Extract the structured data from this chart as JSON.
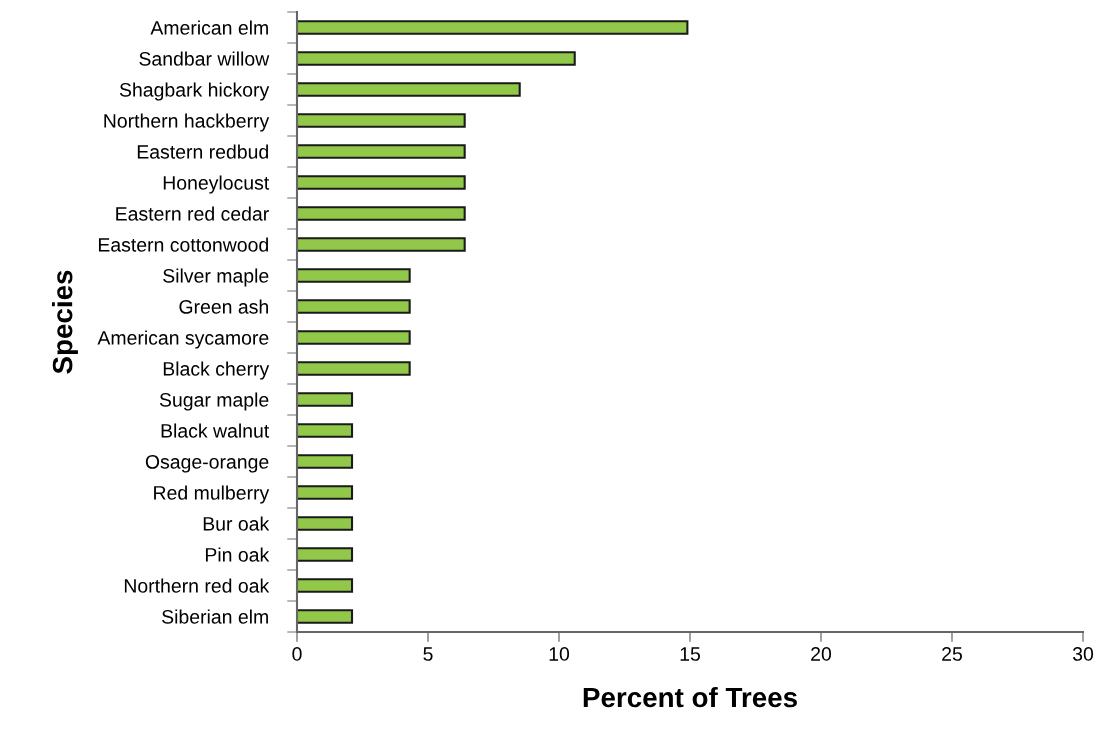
{
  "chart_data": {
    "type": "bar",
    "orientation": "horizontal",
    "xlabel": "Percent of Trees",
    "ylabel": "Species",
    "categories": [
      "American elm",
      "Sandbar willow",
      "Shagbark hickory",
      "Northern hackberry",
      "Eastern redbud",
      "Honeylocust",
      "Eastern red cedar",
      "Eastern cottonwood",
      "Silver maple",
      "Green ash",
      "American sycamore",
      "Black cherry",
      "Sugar maple",
      "Black walnut",
      "Osage-orange",
      "Red mulberry",
      "Bur oak",
      "Pin oak",
      "Northern red oak",
      "Siberian elm"
    ],
    "values": [
      14.9,
      10.6,
      8.5,
      6.4,
      6.4,
      6.4,
      6.4,
      6.4,
      4.3,
      4.3,
      4.3,
      4.3,
      2.1,
      2.1,
      2.1,
      2.1,
      2.1,
      2.1,
      2.1,
      2.1
    ],
    "color": "#92c84a",
    "xlim": [
      0,
      30
    ],
    "xticks": [
      0,
      5,
      10,
      15,
      20,
      25,
      30
    ],
    "grid": false,
    "legend": false
  }
}
